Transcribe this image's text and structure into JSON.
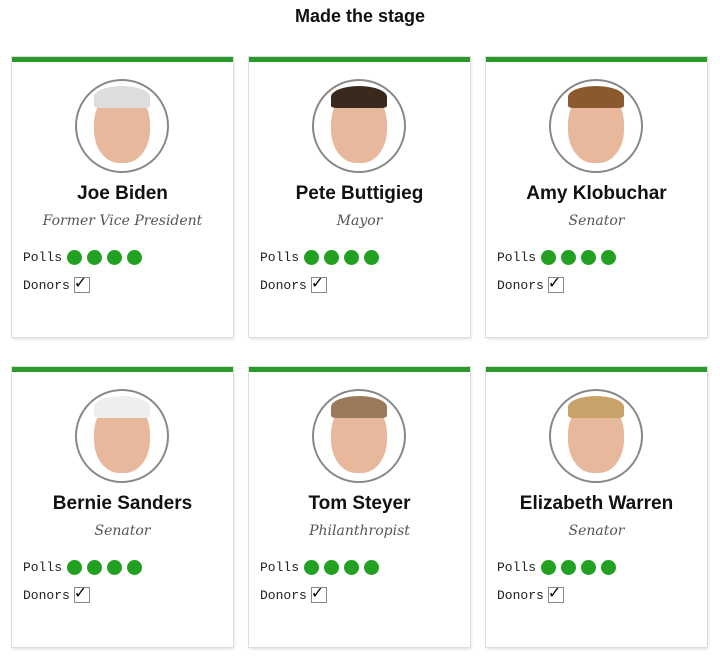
{
  "title": "Made the stage",
  "accent": "#2a9a2a",
  "poll_labels": "Polls",
  "donor_label": "Donors",
  "candidates": [
    {
      "name": "Joe Biden",
      "role": "Former Vice President",
      "polls": 4,
      "donors": true,
      "hair": "#ddd"
    },
    {
      "name": "Pete Buttigieg",
      "role": "Mayor",
      "polls": 4,
      "donors": true,
      "hair": "#3a2a1e"
    },
    {
      "name": "Amy Klobuchar",
      "role": "Senator",
      "polls": 4,
      "donors": true,
      "hair": "#8a5a2e"
    },
    {
      "name": "Bernie Sanders",
      "role": "Senator",
      "polls": 4,
      "donors": true,
      "hair": "#eee"
    },
    {
      "name": "Tom Steyer",
      "role": "Philanthropist",
      "polls": 4,
      "donors": true,
      "hair": "#9a7a5a"
    },
    {
      "name": "Elizabeth Warren",
      "role": "Senator",
      "polls": 4,
      "donors": true,
      "hair": "#c9a46a"
    }
  ]
}
